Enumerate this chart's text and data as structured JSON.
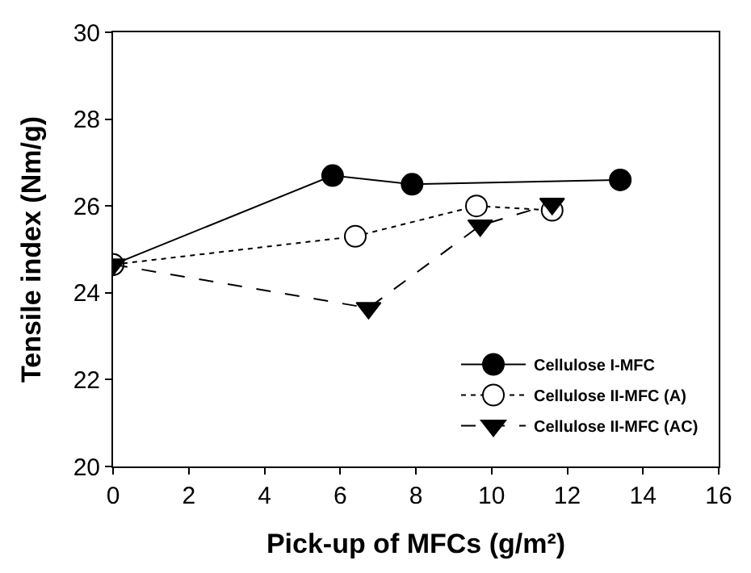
{
  "chart_data": {
    "type": "line",
    "xlabel": "Pick-up of MFCs (g/m²)",
    "ylabel": "Tensile index (Nm/g)",
    "xlim": [
      0,
      16
    ],
    "xticks": [
      0,
      2,
      4,
      6,
      8,
      10,
      12,
      14,
      16
    ],
    "ylim": [
      20,
      30
    ],
    "yticks": [
      20,
      22,
      24,
      26,
      28,
      30
    ],
    "legend": "bottom right",
    "series": [
      {
        "name": "Cellulose I-MFC",
        "color": "#000000",
        "marker": "circle",
        "line_style": "solid",
        "x": [
          0,
          5.8,
          7.9,
          13.4
        ],
        "values": [
          24.65,
          26.7,
          26.5,
          26.6
        ]
      },
      {
        "name": "Cellulose II-MFC (A)",
        "color": "#000000",
        "marker": "circle-open",
        "line_style": "dotted",
        "x": [
          0,
          6.4,
          9.6,
          11.6
        ],
        "values": [
          24.65,
          25.3,
          26.0,
          25.9
        ]
      },
      {
        "name": "Cellulose II-MFC (AC)",
        "color": "#000000",
        "marker": "triangle-down",
        "line_style": "dashed",
        "x": [
          0,
          6.75,
          9.7,
          11.6
        ],
        "values": [
          24.65,
          23.65,
          25.55,
          26.05
        ]
      }
    ]
  }
}
